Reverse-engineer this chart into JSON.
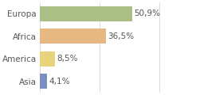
{
  "categories": [
    "Europa",
    "Africa",
    "America",
    "Asia"
  ],
  "values": [
    50.9,
    36.5,
    8.5,
    4.1
  ],
  "labels": [
    "50,9%",
    "36,5%",
    "8,5%",
    "4,1%"
  ],
  "bar_colors": [
    "#aabf85",
    "#e8b882",
    "#e8d27a",
    "#7b8fc4"
  ],
  "background_color": "#ffffff",
  "xlim": [
    0,
    100
  ],
  "grid_lines": [
    0,
    33,
    66,
    100
  ],
  "figsize": [
    2.8,
    1.2
  ],
  "dpi": 100
}
